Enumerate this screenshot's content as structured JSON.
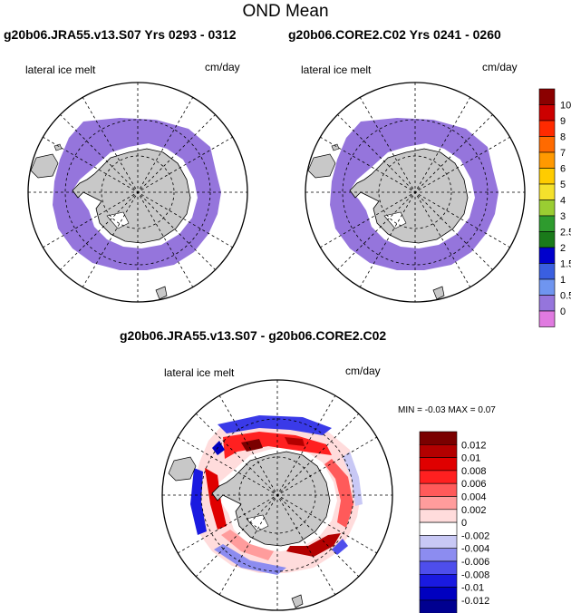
{
  "page_title": "OND Mean",
  "panels": [
    {
      "title": "g20b06.JRA55.v13.S07  Yrs 0293 - 0312",
      "left_label": "lateral ice melt",
      "right_label": "cm/day"
    },
    {
      "title": "g20b06.CORE2.C02  Yrs 0241 - 0260",
      "left_label": "lateral ice melt",
      "right_label": "cm/day"
    },
    {
      "title": "g20b06.JRA55.v13.S07 - g20b06.CORE2.C02",
      "left_label": "lateral ice melt",
      "right_label": "cm/day",
      "stats_min_label": "MIN =",
      "stats_min": "-0.03",
      "stats_max_label": "MAX =",
      "stats_max": "0.07"
    }
  ],
  "colorbars": {
    "mean": {
      "labels": [
        "10",
        "9",
        "8",
        "7",
        "6",
        "5",
        "4",
        "3",
        "2.5",
        "2",
        "1.5",
        "1",
        "0.5",
        "0"
      ],
      "colors": [
        "#8b0000",
        "#cc0000",
        "#ff2a00",
        "#ff6a00",
        "#ff9900",
        "#ffcc00",
        "#f5e12c",
        "#9acd32",
        "#2e9b2e",
        "#1a7a1a",
        "#0000cc",
        "#3a5fe0",
        "#6f95f0",
        "#9575dc",
        "#e07ae0"
      ]
    },
    "diff": {
      "labels": [
        "0.012",
        "0.01",
        "0.008",
        "0.006",
        "0.004",
        "0.002",
        "0",
        "-0.002",
        "-0.004",
        "-0.006",
        "-0.008",
        "-0.01",
        "-0.012"
      ],
      "colors": [
        "#7a0000",
        "#b30000",
        "#e00000",
        "#ff2020",
        "#ff5a5a",
        "#ff9c9c",
        "#ffdcdc",
        "#ffffff",
        "#c8c8f5",
        "#8c8cf0",
        "#4e4eec",
        "#1a1ae0",
        "#0000c0",
        "#000090"
      ]
    }
  },
  "chart_data": [
    {
      "type": "heatmap",
      "title": "g20b06.JRA55.v13.S07  Yrs 0293 - 0312",
      "variable": "lateral ice melt",
      "units": "cm/day",
      "projection": "south polar stereographic",
      "levels": [
        0,
        0.5,
        1,
        1.5,
        2,
        2.5,
        3,
        4,
        5,
        6,
        7,
        8,
        9,
        10
      ],
      "dominant_range": [
        0,
        0.5
      ]
    },
    {
      "type": "heatmap",
      "title": "g20b06.CORE2.C02  Yrs 0241 - 0260",
      "variable": "lateral ice melt",
      "units": "cm/day",
      "projection": "south polar stereographic",
      "levels": [
        0,
        0.5,
        1,
        1.5,
        2,
        2.5,
        3,
        4,
        5,
        6,
        7,
        8,
        9,
        10
      ],
      "dominant_range": [
        0,
        0.5
      ]
    },
    {
      "type": "heatmap",
      "title": "g20b06.JRA55.v13.S07 - g20b06.CORE2.C02",
      "variable": "lateral ice melt",
      "units": "cm/day",
      "projection": "south polar stereographic",
      "min": -0.03,
      "max": 0.07,
      "levels": [
        -0.012,
        -0.01,
        -0.008,
        -0.006,
        -0.004,
        -0.002,
        0,
        0.002,
        0.004,
        0.006,
        0.008,
        0.01,
        0.012
      ]
    }
  ]
}
